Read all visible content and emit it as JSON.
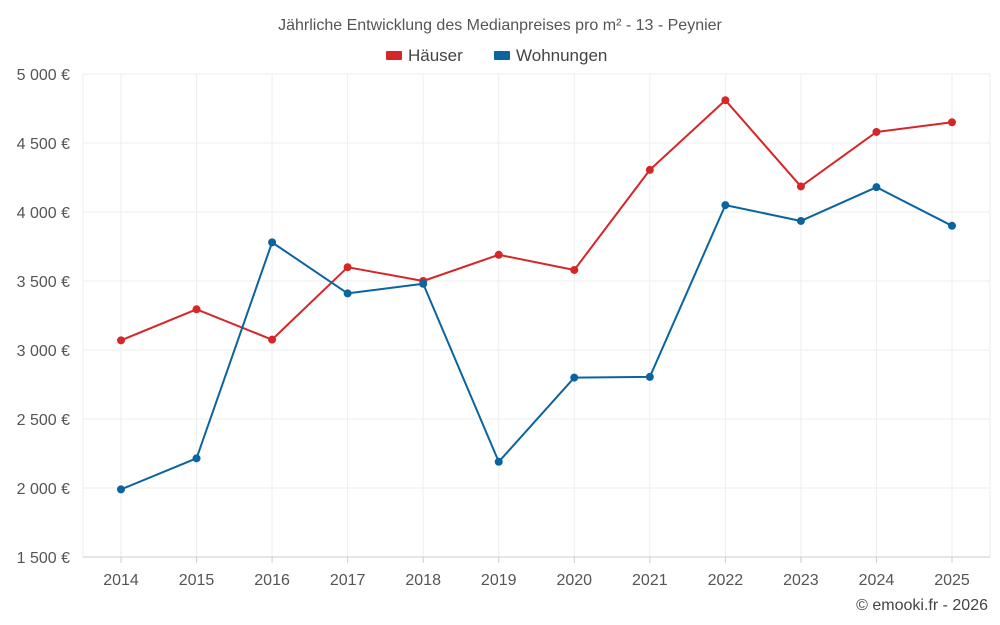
{
  "chart_data": {
    "type": "line",
    "title": "Jährliche Entwicklung des Medianpreises pro m² - 13 - Peynier",
    "categories": [
      "2014",
      "2015",
      "2016",
      "2017",
      "2018",
      "2019",
      "2020",
      "2021",
      "2022",
      "2023",
      "2024",
      "2025"
    ],
    "series": [
      {
        "name": "Häuser",
        "color": "#d62728",
        "values": [
          3070,
          3295,
          3075,
          3600,
          3500,
          3690,
          3580,
          4305,
          4810,
          4185,
          4580,
          4650
        ]
      },
      {
        "name": "Wohnungen",
        "color": "#0a64a0",
        "values": [
          1990,
          2215,
          3780,
          3410,
          3480,
          2190,
          2800,
          2805,
          4050,
          3935,
          4180,
          3900
        ]
      }
    ],
    "ylim": [
      1500,
      5000
    ],
    "yticks": [
      1500,
      2000,
      2500,
      3000,
      3500,
      4000,
      4500,
      5000
    ],
    "ytick_labels": [
      "1 500 €",
      "2 000 €",
      "2 500 €",
      "3 000 €",
      "3 500 €",
      "4 000 €",
      "4 500 €",
      "5 000 €"
    ],
    "legend": "top-center",
    "grid": true
  },
  "credit": "© emooki.fr - 2026"
}
